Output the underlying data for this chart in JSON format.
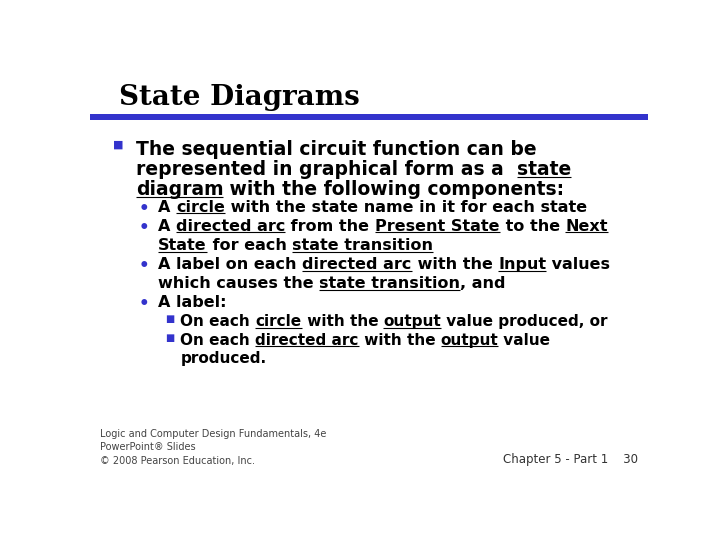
{
  "title": "State Diagrams",
  "background_color": "#ffffff",
  "bar_color": "#3333cc",
  "bullet_color": "#3333cc",
  "text_color": "#000000",
  "footer_left": "Logic and Computer Design Fundamentals, 4e\nPowerPoint® Slides\n© 2008 Pearson Education, Inc.",
  "footer_right": "Chapter 5 - Part 1    30"
}
